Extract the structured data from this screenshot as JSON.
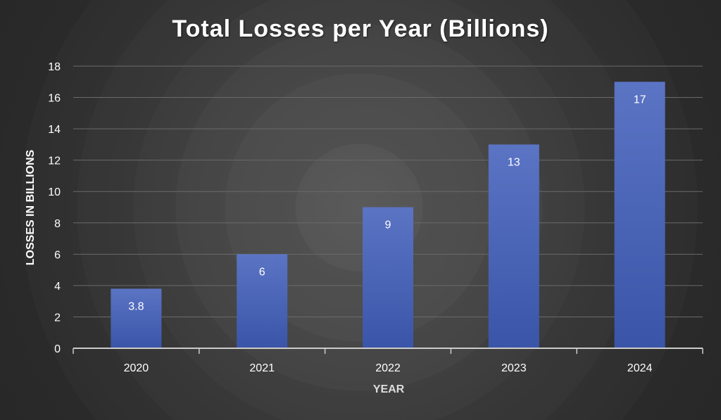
{
  "chart_data": {
    "type": "bar",
    "title": "Total Losses per Year (Billions)",
    "xlabel": "YEAR",
    "ylabel": "LOSSES IN BILLIONS",
    "categories": [
      "2020",
      "2021",
      "2022",
      "2023",
      "2024"
    ],
    "values": [
      3.8,
      6,
      9,
      13,
      17
    ],
    "data_labels": [
      "3.8",
      "6",
      "9",
      "13",
      "17"
    ],
    "ylim": [
      0,
      18
    ],
    "y_ticks": [
      "0",
      "2",
      "4",
      "6",
      "8",
      "10",
      "12",
      "14",
      "16",
      "18"
    ],
    "grid": true,
    "legend": "none",
    "bar_color_top": "#5b74c4",
    "bar_color_bottom": "#3a55a8",
    "background_color": "#3a3a3a",
    "gridline_color": "#6a6a6a",
    "axis_color": "#cccccc"
  }
}
